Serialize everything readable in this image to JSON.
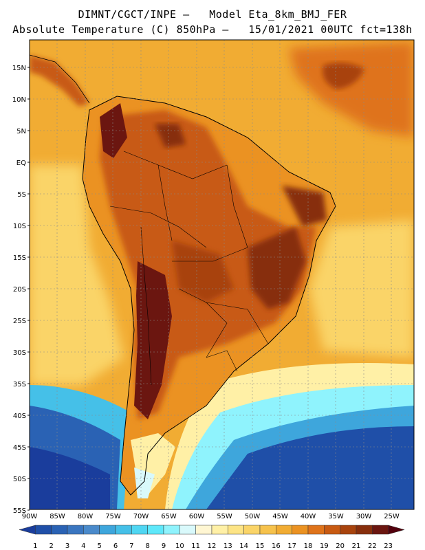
{
  "title": {
    "line1": "DIMNT/CGCT/INPE –   Model Eta_8km_BMJ_FER",
    "line2": "Absolute Temperature (C) 850hPa –   15/01/2021 00UTC fct=138h"
  },
  "map": {
    "lat_labels": [
      "15N",
      "10N",
      "5N",
      "EQ",
      "5S",
      "10S",
      "15S",
      "20S",
      "25S",
      "30S",
      "35S",
      "40S",
      "45S",
      "50S",
      "55S"
    ],
    "lon_labels": [
      "90W",
      "85W",
      "80W",
      "75W",
      "70W",
      "65W",
      "60W",
      "55W",
      "50W",
      "45W",
      "40W",
      "35W",
      "30W",
      "25W"
    ]
  },
  "legend": {
    "values": [
      "1",
      "2",
      "3",
      "4",
      "5",
      "6",
      "7",
      "8",
      "9",
      "10",
      "11",
      "12",
      "13",
      "14",
      "15",
      "16",
      "17",
      "18",
      "19",
      "20",
      "21",
      "22",
      "23"
    ],
    "colors": [
      "#1a3d9c",
      "#1f4fa8",
      "#2a62b4",
      "#3a76c0",
      "#4a8acb",
      "#3ea6dc",
      "#45c0e8",
      "#4fd6f2",
      "#5ee8fa",
      "#8ff3fd",
      "#d9f9fb",
      "#fff6d2",
      "#fff0a6",
      "#fde485",
      "#fad468",
      "#f6c24c",
      "#f1ac33",
      "#eb9222",
      "#df731a",
      "#c85a12",
      "#a8430d",
      "#872e0c",
      "#6b1610",
      "#52000c"
    ]
  }
}
